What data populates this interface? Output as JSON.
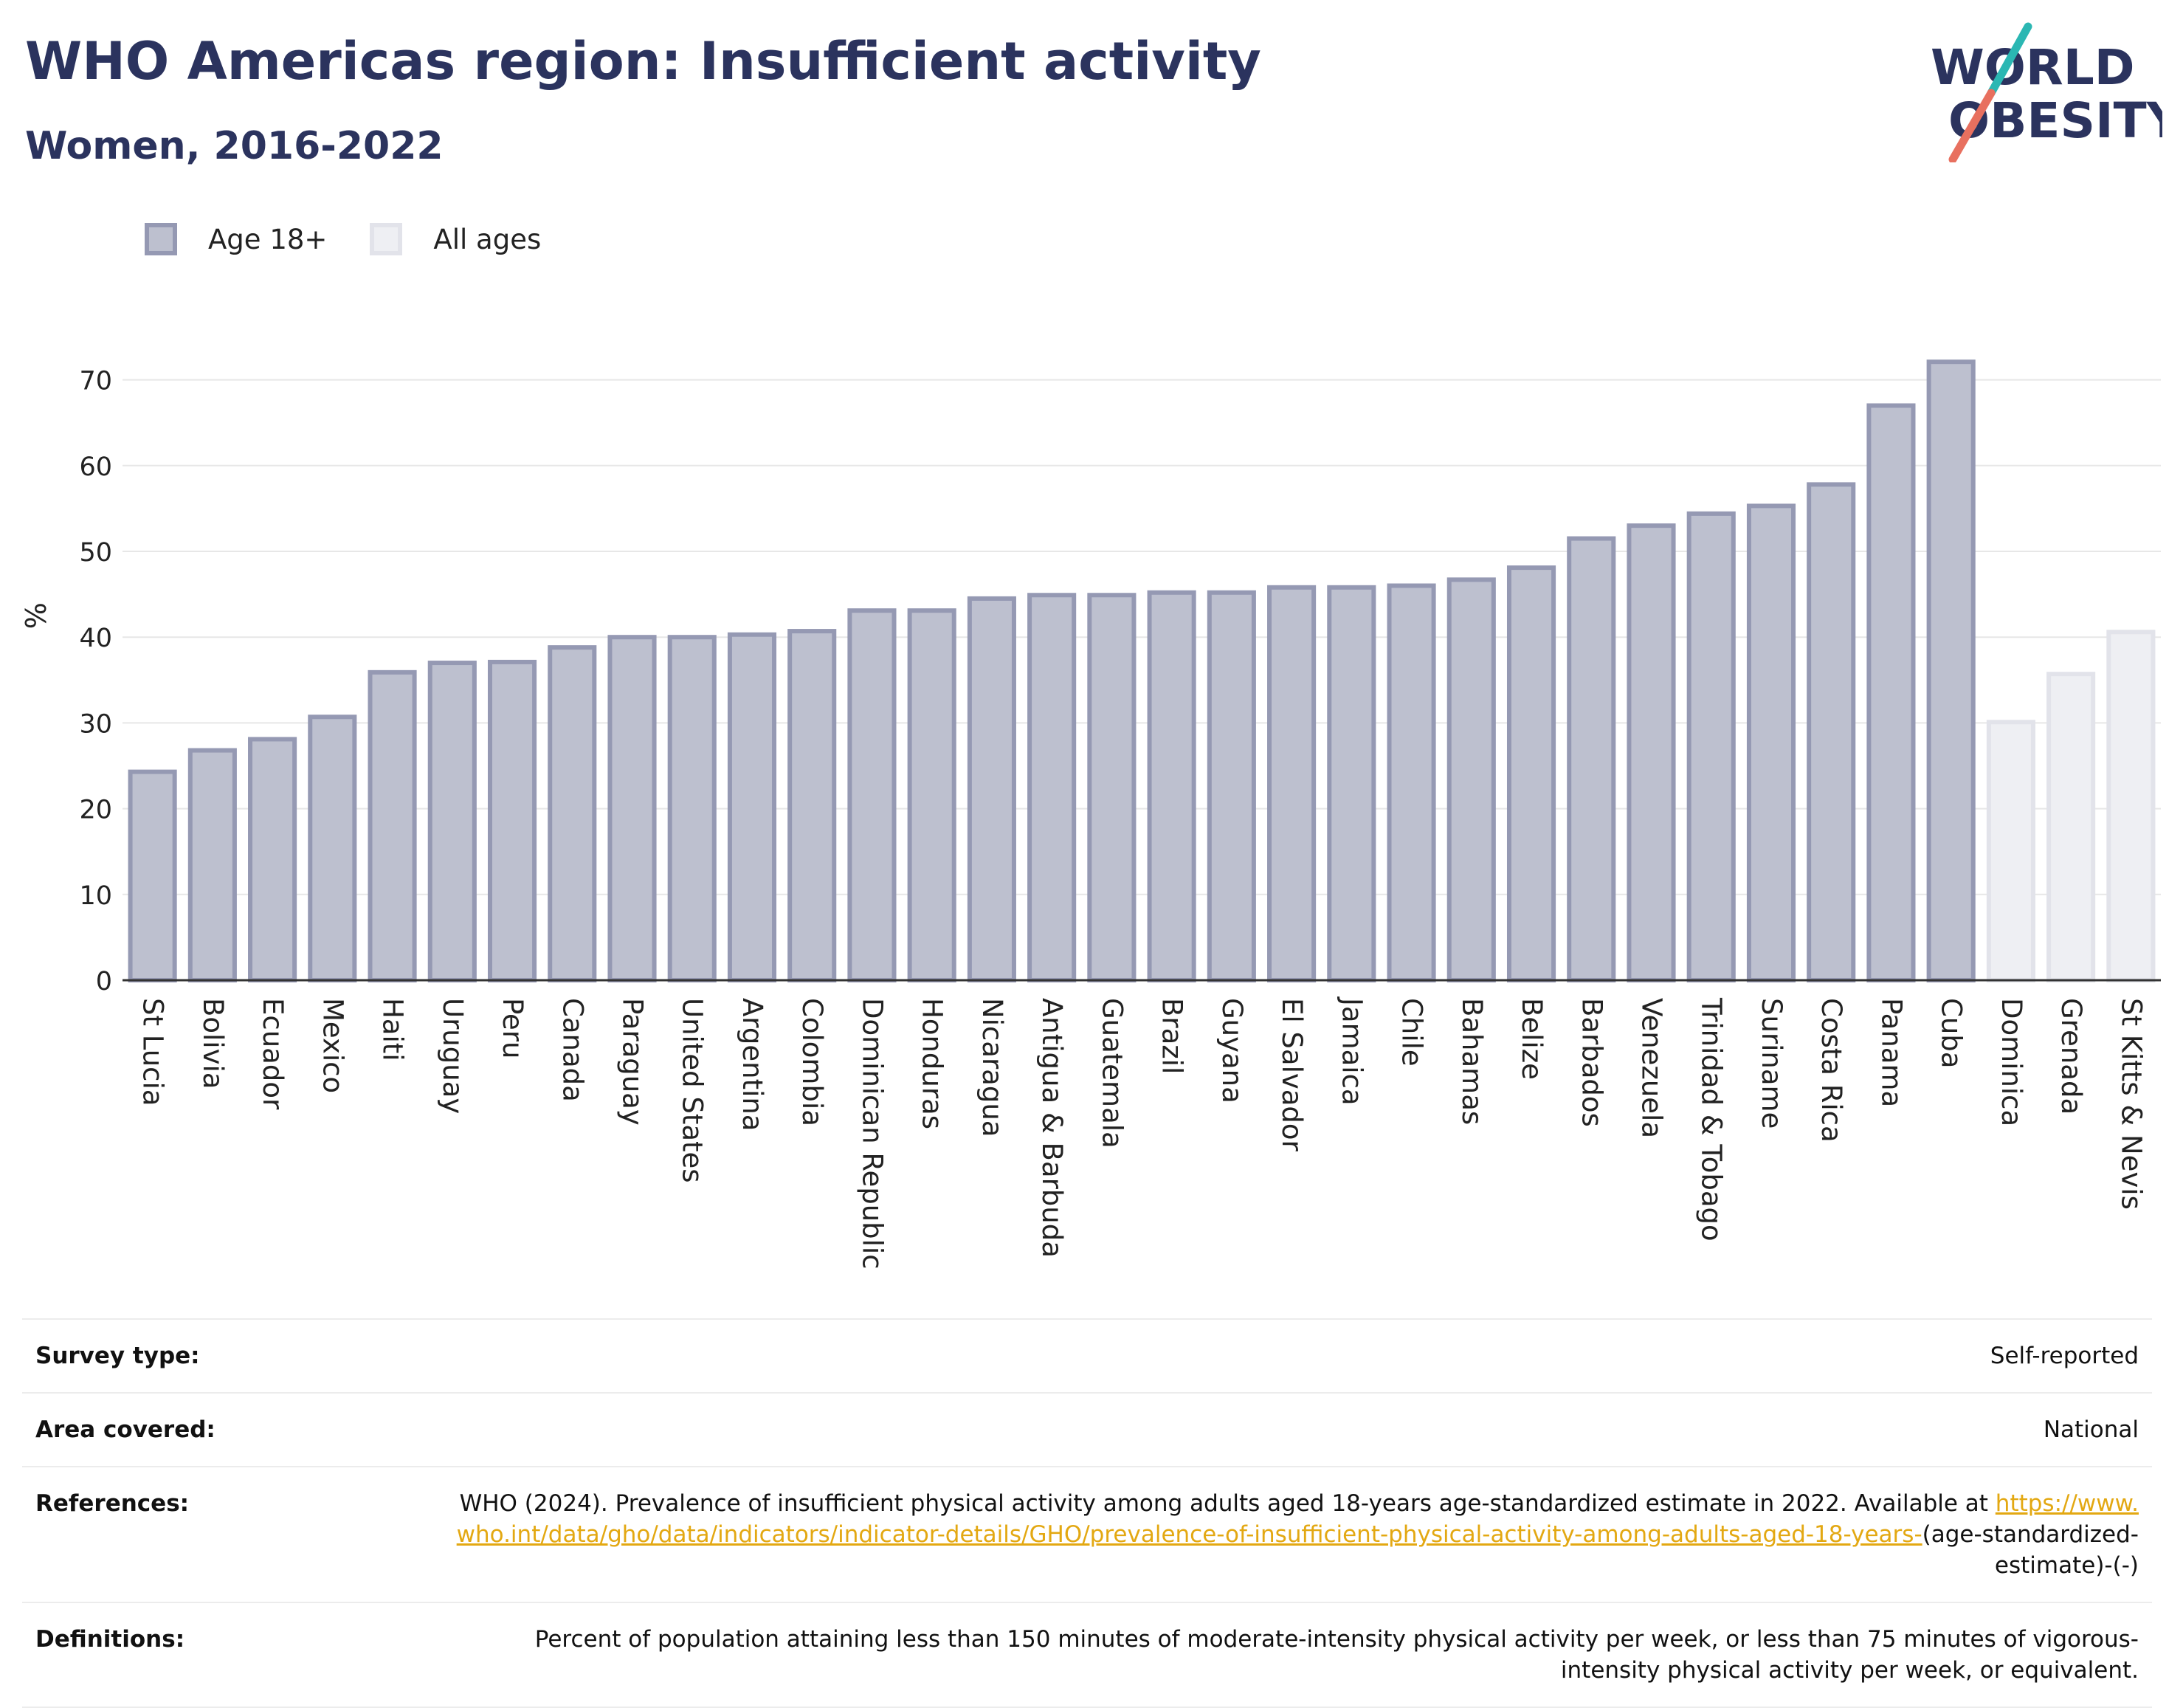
{
  "header": {
    "title": "WHO Americas region: Insufficient activity",
    "subtitle": "Women, 2016-2022"
  },
  "logo": {
    "line1": "WORLD",
    "line2": "OBESITY",
    "colors": {
      "text": "#2b335e",
      "slash_top": "#2bb7b3",
      "slash_bottom": "#e8705f"
    }
  },
  "colors": {
    "age18_fill": "#bdc0cf",
    "age18_stroke": "#9599b3",
    "allages_fill": "#eeeff3",
    "allages_stroke": "#e2e3ea",
    "title": "#2b335e",
    "link": "#e3a812"
  },
  "chart_data": {
    "type": "bar",
    "ylabel": "%",
    "ylim": [
      0,
      75
    ],
    "yticks": [
      0,
      10,
      20,
      30,
      40,
      50,
      60,
      70
    ],
    "grid": true,
    "legend_placement": "top-left",
    "legend": [
      {
        "name": "Age 18+",
        "key": "age18"
      },
      {
        "name": "All ages",
        "key": "allages"
      }
    ],
    "bars": [
      {
        "category": "St Lucia",
        "value": 24.3,
        "series": "age18"
      },
      {
        "category": "Bolivia",
        "value": 26.8,
        "series": "age18"
      },
      {
        "category": "Ecuador",
        "value": 28.1,
        "series": "age18"
      },
      {
        "category": "Mexico",
        "value": 30.7,
        "series": "age18"
      },
      {
        "category": "Haiti",
        "value": 35.9,
        "series": "age18"
      },
      {
        "category": "Uruguay",
        "value": 37.0,
        "series": "age18"
      },
      {
        "category": "Peru",
        "value": 37.1,
        "series": "age18"
      },
      {
        "category": "Canada",
        "value": 38.8,
        "series": "age18"
      },
      {
        "category": "Paraguay",
        "value": 40.0,
        "series": "age18"
      },
      {
        "category": "United States",
        "value": 40.0,
        "series": "age18"
      },
      {
        "category": "Argentina",
        "value": 40.3,
        "series": "age18"
      },
      {
        "category": "Colombia",
        "value": 40.7,
        "series": "age18"
      },
      {
        "category": "Dominican Republic",
        "value": 43.1,
        "series": "age18"
      },
      {
        "category": "Honduras",
        "value": 43.1,
        "series": "age18"
      },
      {
        "category": "Nicaragua",
        "value": 44.5,
        "series": "age18"
      },
      {
        "category": "Antigua & Barbuda",
        "value": 44.9,
        "series": "age18"
      },
      {
        "category": "Guatemala",
        "value": 44.9,
        "series": "age18"
      },
      {
        "category": "Brazil",
        "value": 45.2,
        "series": "age18"
      },
      {
        "category": "Guyana",
        "value": 45.2,
        "series": "age18"
      },
      {
        "category": "El Salvador",
        "value": 45.8,
        "series": "age18"
      },
      {
        "category": "Jamaica",
        "value": 45.8,
        "series": "age18"
      },
      {
        "category": "Chile",
        "value": 46.0,
        "series": "age18"
      },
      {
        "category": "Bahamas",
        "value": 46.7,
        "series": "age18"
      },
      {
        "category": "Belize",
        "value": 48.1,
        "series": "age18"
      },
      {
        "category": "Barbados",
        "value": 51.5,
        "series": "age18"
      },
      {
        "category": "Venezuela",
        "value": 53.0,
        "series": "age18"
      },
      {
        "category": "Trinidad & Tobago",
        "value": 54.4,
        "series": "age18"
      },
      {
        "category": "Suriname",
        "value": 55.3,
        "series": "age18"
      },
      {
        "category": "Costa Rica",
        "value": 57.8,
        "series": "age18"
      },
      {
        "category": "Panama",
        "value": 67.0,
        "series": "age18"
      },
      {
        "category": "Cuba",
        "value": 72.1,
        "series": "age18"
      },
      {
        "category": "Dominica",
        "value": 30.1,
        "series": "allages"
      },
      {
        "category": "Grenada",
        "value": 35.7,
        "series": "allages"
      },
      {
        "category": "St Kitts & Nevis",
        "value": 40.6,
        "series": "allages"
      }
    ]
  },
  "info": {
    "survey_type": {
      "label": "Survey type:",
      "value": "Self-reported"
    },
    "area_covered": {
      "label": "Area covered:",
      "value": "National"
    },
    "references": {
      "label": "References:",
      "text": "WHO (2024). Prevalence of insufficient physical activity among adults aged 18-years age-standardized estimate in 2022. Available at",
      "link": "https://www.who.int/data/gho/data/indicators/indicator-details/GHO/prevalence-of-insufficient-physical-activity-among-adults-aged-18-years-",
      "suffix": "(age-standardized-estimate)-(-)"
    },
    "definitions": {
      "label": "Definitions:",
      "value": "Percent of population attaining less than 150 minutes of moderate-intensity physical activity per week, or less than 75 minutes of vigorous-intensity physical activity per week, or equivalent."
    }
  }
}
